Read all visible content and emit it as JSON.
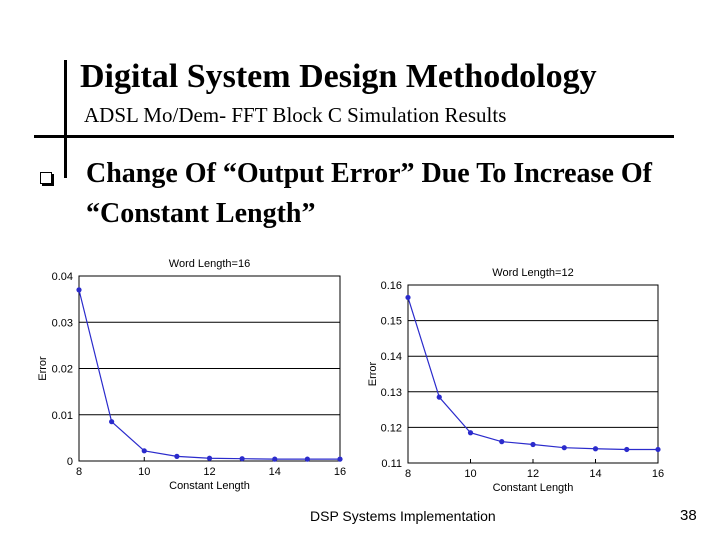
{
  "slide": {
    "title": "Digital System Design Methodology",
    "subtitle": "ADSL Mo/Dem- FFT Block C Simulation Results",
    "bullet_text": "Change Of “Output Error” Due To Increase Of “Constant Length”",
    "footer": "DSP Systems Implementation",
    "page_number": "38"
  },
  "chart_data": [
    {
      "type": "line",
      "title": "Word Length=16",
      "xlabel": "Constant Length",
      "ylabel": "Error",
      "x": [
        8,
        9,
        10,
        11,
        12,
        13,
        14,
        15,
        16
      ],
      "y": [
        0.037,
        0.0085,
        0.0022,
        0.001,
        0.0006,
        0.0005,
        0.0004,
        0.0004,
        0.0004
      ],
      "xlim": [
        8,
        16
      ],
      "ylim": [
        0,
        0.04
      ],
      "xticks": [
        8,
        10,
        12,
        14,
        16
      ],
      "yticks": [
        0,
        0.01,
        0.02,
        0.03,
        0.04
      ],
      "xtick_labels": [
        "8",
        "10",
        "12",
        "14",
        "16"
      ],
      "ytick_labels": [
        "0",
        "0.01",
        "0.02",
        "0.03",
        "0.04"
      ],
      "grid": "horizontal",
      "color": "#2b2bcc"
    },
    {
      "type": "line",
      "title": "Word Length=12",
      "xlabel": "Constant Length",
      "ylabel": "Error",
      "x": [
        8,
        9,
        10,
        11,
        12,
        13,
        14,
        15,
        16
      ],
      "y": [
        0.1565,
        0.1285,
        0.1185,
        0.116,
        0.1152,
        0.1143,
        0.114,
        0.1138,
        0.1138
      ],
      "xlim": [
        8,
        16
      ],
      "ylim": [
        0.11,
        0.16
      ],
      "xticks": [
        8,
        10,
        12,
        14,
        16
      ],
      "yticks": [
        0.11,
        0.12,
        0.13,
        0.14,
        0.15,
        0.16
      ],
      "xtick_labels": [
        "8",
        "10",
        "12",
        "14",
        "16"
      ],
      "ytick_labels": [
        "0.11",
        "0.12",
        "0.13",
        "0.14",
        "0.15",
        "0.16"
      ],
      "grid": "horizontal",
      "color": "#2b2bcc"
    }
  ]
}
